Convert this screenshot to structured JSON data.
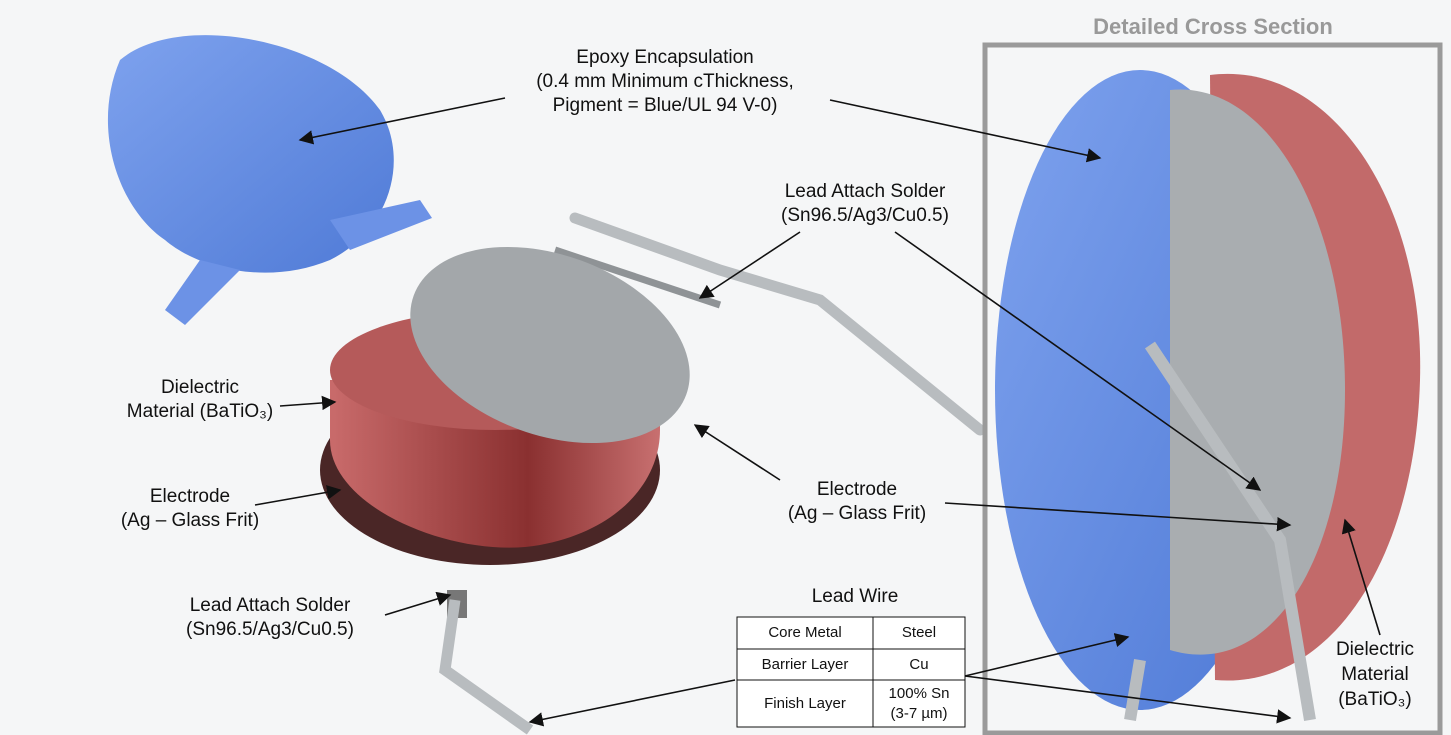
{
  "title": "Detailed Cross Section",
  "labels": [
    {
      "lines": [
        "Epoxy Encapsulation",
        "(0.4 mm Minimum cThickness,",
        "Pigment = Blue/UL 94 V-0)"
      ]
    },
    {
      "lines": [
        "Lead Attach Solder",
        "(Sn96.5/Ag3/Cu0.5)"
      ]
    },
    {
      "lines": [
        "Dielectric",
        "Material (BaTiO₃)"
      ]
    },
    {
      "lines": [
        "Electrode",
        "(Ag – Glass Frit)"
      ]
    },
    {
      "lines": [
        "Lead Attach Solder",
        "(Sn96.5/Ag3/Cu0.5)"
      ]
    },
    {
      "lines": [
        "Electrode",
        "(Ag – Glass Frit)"
      ]
    },
    {
      "lines": [
        "Dielectric",
        "Material",
        "(BaTiO₃)"
      ]
    }
  ],
  "lead_wire": {
    "title": "Lead Wire",
    "rows": [
      {
        "name": "Core Metal",
        "value": [
          "Steel"
        ]
      },
      {
        "name": "Barrier Layer",
        "value": [
          "Cu"
        ]
      },
      {
        "name": "Finish Layer",
        "value": [
          "100% Sn",
          "(3-7 µm)"
        ]
      }
    ]
  }
}
